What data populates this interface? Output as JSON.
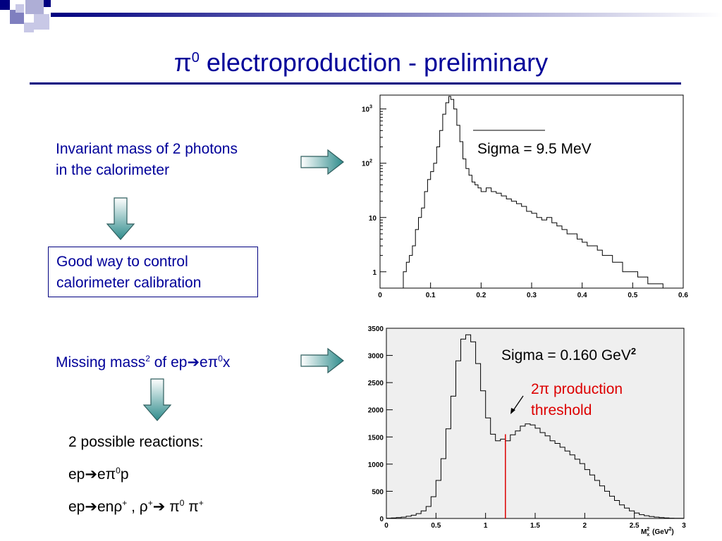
{
  "slide": {
    "title_prefix": "π",
    "title_sup": "0",
    "title_rest": " electroproduction - preliminary",
    "item1_line1": "Invariant mass of 2 photons",
    "item1_line2": "in the calorimeter",
    "box_line1": "Good way to control",
    "box_line2": "calorimeter calibration",
    "item2_a": "Missing mass",
    "item2_sup2": "2",
    "item2_b": " of ep",
    "item2_arrow": "➔",
    "item2_c": "eπ",
    "item2_sup0": "0",
    "item2_d": "x",
    "reactions_title": "2 possible reactions:",
    "r1_a": "ep",
    "r1_arrow": "➔",
    "r1_b": "eπ",
    "r1_sup": "0",
    "r1_c": "p",
    "r2_a": "ep",
    "r2_arrow": "➔",
    "r2_b": "enρ",
    "r2_sup1": "+",
    "r2_c": " , ρ",
    "r2_sup2": "+",
    "r2_arrow2": "➔",
    "r2_d": " π",
    "r2_sup3": "0",
    "r2_e": " π",
    "r2_sup4": "+"
  },
  "chart_data": [
    {
      "type": "line",
      "title": "",
      "annotation": "Sigma = 9.5 MeV",
      "xlabel": "",
      "ylabel": "",
      "log_y": true,
      "xlim": [
        0,
        0.6
      ],
      "ylim": [
        0.5,
        1800
      ],
      "xticks": [
        "0",
        "0.1",
        "0.2",
        "0.3",
        "0.4",
        "0.5",
        "0.6"
      ],
      "yticks": [
        "1",
        "10",
        "10",
        "10"
      ],
      "ytick_sups": [
        "",
        "",
        "2",
        "3"
      ],
      "x": [
        0.04,
        0.046,
        0.052,
        0.058,
        0.064,
        0.07,
        0.076,
        0.082,
        0.088,
        0.094,
        0.1,
        0.106,
        0.112,
        0.118,
        0.124,
        0.13,
        0.136,
        0.14,
        0.146,
        0.152,
        0.158,
        0.164,
        0.17,
        0.176,
        0.182,
        0.188,
        0.194,
        0.2,
        0.21,
        0.22,
        0.23,
        0.24,
        0.25,
        0.26,
        0.27,
        0.28,
        0.29,
        0.3,
        0.31,
        0.32,
        0.33,
        0.34,
        0.35,
        0.36,
        0.37,
        0.38,
        0.39,
        0.4,
        0.41,
        0.42,
        0.43,
        0.44,
        0.45,
        0.46,
        0.47,
        0.48,
        0.49,
        0.5,
        0.51,
        0.52,
        0.53,
        0.54,
        0.55,
        0.56,
        0.57,
        0.58,
        0.59,
        0.6
      ],
      "values": [
        0.5,
        1.0,
        1.5,
        2,
        3,
        6,
        10,
        15,
        30,
        50,
        70,
        100,
        200,
        400,
        800,
        1300,
        1700,
        1500,
        1000,
        500,
        250,
        120,
        80,
        60,
        45,
        40,
        35,
        30,
        35,
        30,
        28,
        25,
        22,
        20,
        18,
        16,
        13,
        12,
        10,
        9,
        10,
        8,
        7,
        6,
        5,
        5,
        4,
        3.5,
        3,
        3,
        2.5,
        2,
        2,
        1.5,
        1.5,
        1,
        1,
        1,
        0.8,
        0.8,
        0.6,
        0.6,
        0.6,
        0.5,
        0.5,
        0.5,
        0.5,
        0.5
      ]
    },
    {
      "type": "line",
      "title": "",
      "annotation": "Sigma = 0.160 GeV",
      "annotation_sup": "2",
      "threshold_label_line1": "2π production",
      "threshold_label_line2": "threshold",
      "threshold_x": 1.2,
      "xlabel": "M",
      "xlabel_sub": "x",
      "xlabel_sup": "2",
      "xlabel_unit": "(GeV",
      "xlabel_unit_sup": "2",
      "xlabel_close": ")",
      "xlim": [
        0,
        3
      ],
      "ylim": [
        0,
        3500
      ],
      "xticks": [
        "0",
        "0.5",
        "1",
        "1.5",
        "2",
        "2.5",
        "3"
      ],
      "yticks": [
        "0",
        "500",
        "1000",
        "1500",
        "2000",
        "2500",
        "3000",
        "3500"
      ],
      "x": [
        0.0,
        0.05,
        0.1,
        0.15,
        0.2,
        0.25,
        0.3,
        0.35,
        0.4,
        0.45,
        0.5,
        0.55,
        0.6,
        0.65,
        0.7,
        0.75,
        0.8,
        0.85,
        0.9,
        0.95,
        1.0,
        1.05,
        1.1,
        1.15,
        1.2,
        1.25,
        1.3,
        1.35,
        1.4,
        1.45,
        1.5,
        1.55,
        1.6,
        1.65,
        1.7,
        1.75,
        1.8,
        1.85,
        1.9,
        1.95,
        2.0,
        2.05,
        2.1,
        2.15,
        2.2,
        2.25,
        2.3,
        2.35,
        2.4,
        2.45,
        2.5,
        2.55,
        2.6,
        2.65,
        2.7,
        2.75,
        2.8,
        2.85,
        2.9,
        2.95
      ],
      "values": [
        5,
        10,
        15,
        25,
        40,
        60,
        90,
        140,
        220,
        400,
        700,
        1100,
        1650,
        2250,
        2900,
        3300,
        3380,
        3250,
        2850,
        2350,
        1850,
        1550,
        1430,
        1460,
        1430,
        1540,
        1610,
        1700,
        1740,
        1720,
        1660,
        1580,
        1520,
        1430,
        1380,
        1310,
        1240,
        1170,
        1090,
        1010,
        900,
        800,
        700,
        600,
        500,
        410,
        330,
        250,
        190,
        140,
        100,
        70,
        50,
        35,
        25,
        15,
        10,
        5,
        3,
        2
      ]
    }
  ],
  "colors": {
    "title": "#000099",
    "text_blue": "#000099",
    "threshold": "#dd0000",
    "arrow_fill": "#2e8b8b"
  }
}
